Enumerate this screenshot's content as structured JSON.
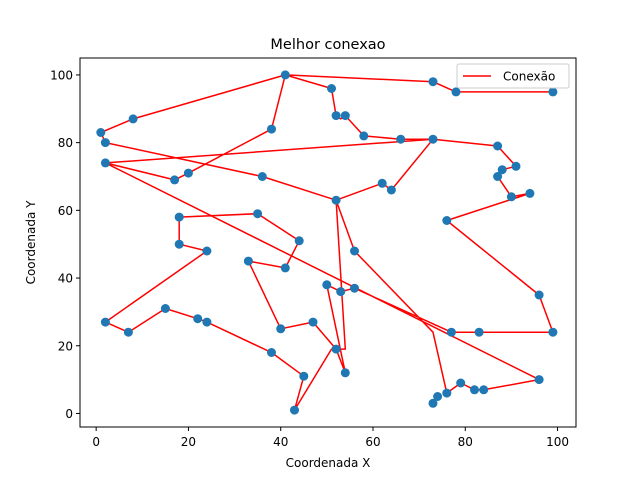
{
  "chart_data": {
    "type": "line",
    "title": "Melhor conexao",
    "xlabel": "Coordenada X",
    "ylabel": "Coordenada Y",
    "xlim": [
      -3.5,
      104
    ],
    "ylim": [
      -4,
      105
    ],
    "xticks": [
      0,
      20,
      40,
      60,
      80,
      100
    ],
    "yticks": [
      0,
      20,
      40,
      60,
      80,
      100
    ],
    "legend": {
      "position": "top-right",
      "entries": [
        {
          "label": "Conexão",
          "color": "#ff0000"
        }
      ]
    },
    "colors": {
      "path": "#ff0000",
      "points": "#1f77b4"
    },
    "series": [
      {
        "name": "Conexão",
        "x": [
          99,
          78,
          73,
          41,
          51,
          52,
          53,
          54,
          58,
          66,
          73,
          87,
          91,
          88,
          87,
          87,
          90,
          94,
          76,
          96,
          99,
          83,
          77,
          56,
          53,
          50,
          54,
          52,
          47,
          40,
          33,
          41,
          44,
          35,
          18,
          18,
          24,
          2,
          7,
          15,
          22,
          24,
          38,
          45,
          43,
          51,
          54,
          52,
          62,
          64,
          73,
          2,
          17,
          20,
          38,
          41,
          8,
          1,
          2,
          36,
          52,
          56,
          73,
          76,
          79,
          82,
          84,
          96,
          2
        ],
        "y": [
          95,
          95,
          98,
          100,
          96,
          88,
          87,
          88,
          82,
          81,
          81,
          79,
          73,
          72,
          70,
          70,
          64,
          65,
          57,
          35,
          24,
          24,
          24,
          37,
          36,
          38,
          12,
          19,
          27,
          25,
          45,
          43,
          51,
          59,
          58,
          50,
          48,
          27,
          24,
          31,
          28,
          27,
          18,
          11,
          1,
          19,
          19,
          63,
          68,
          66,
          81,
          74,
          69,
          71,
          84,
          100,
          87,
          83,
          80,
          70,
          63,
          48,
          24,
          6,
          9,
          7,
          7,
          10,
          74
        ]
      }
    ],
    "points": {
      "x": [
        99,
        78,
        73,
        41,
        51,
        52,
        54,
        58,
        66,
        73,
        87,
        91,
        88,
        87,
        90,
        94,
        76,
        96,
        99,
        83,
        77,
        56,
        53,
        50,
        54,
        52,
        47,
        40,
        33,
        41,
        44,
        35,
        18,
        18,
        24,
        2,
        7,
        15,
        22,
        24,
        38,
        45,
        43,
        52,
        62,
        64,
        2,
        17,
        20,
        38,
        8,
        1,
        2,
        36,
        56,
        73,
        74,
        76,
        79,
        82,
        84,
        96
      ],
      "y": [
        95,
        95,
        98,
        100,
        96,
        88,
        88,
        82,
        81,
        81,
        79,
        73,
        72,
        70,
        64,
        65,
        57,
        35,
        24,
        24,
        24,
        37,
        36,
        38,
        12,
        19,
        27,
        25,
        45,
        43,
        51,
        59,
        58,
        50,
        48,
        27,
        24,
        31,
        28,
        27,
        18,
        11,
        1,
        63,
        68,
        66,
        74,
        69,
        71,
        84,
        87,
        83,
        80,
        70,
        48,
        3,
        5,
        6,
        9,
        7,
        7,
        10
      ]
    }
  }
}
